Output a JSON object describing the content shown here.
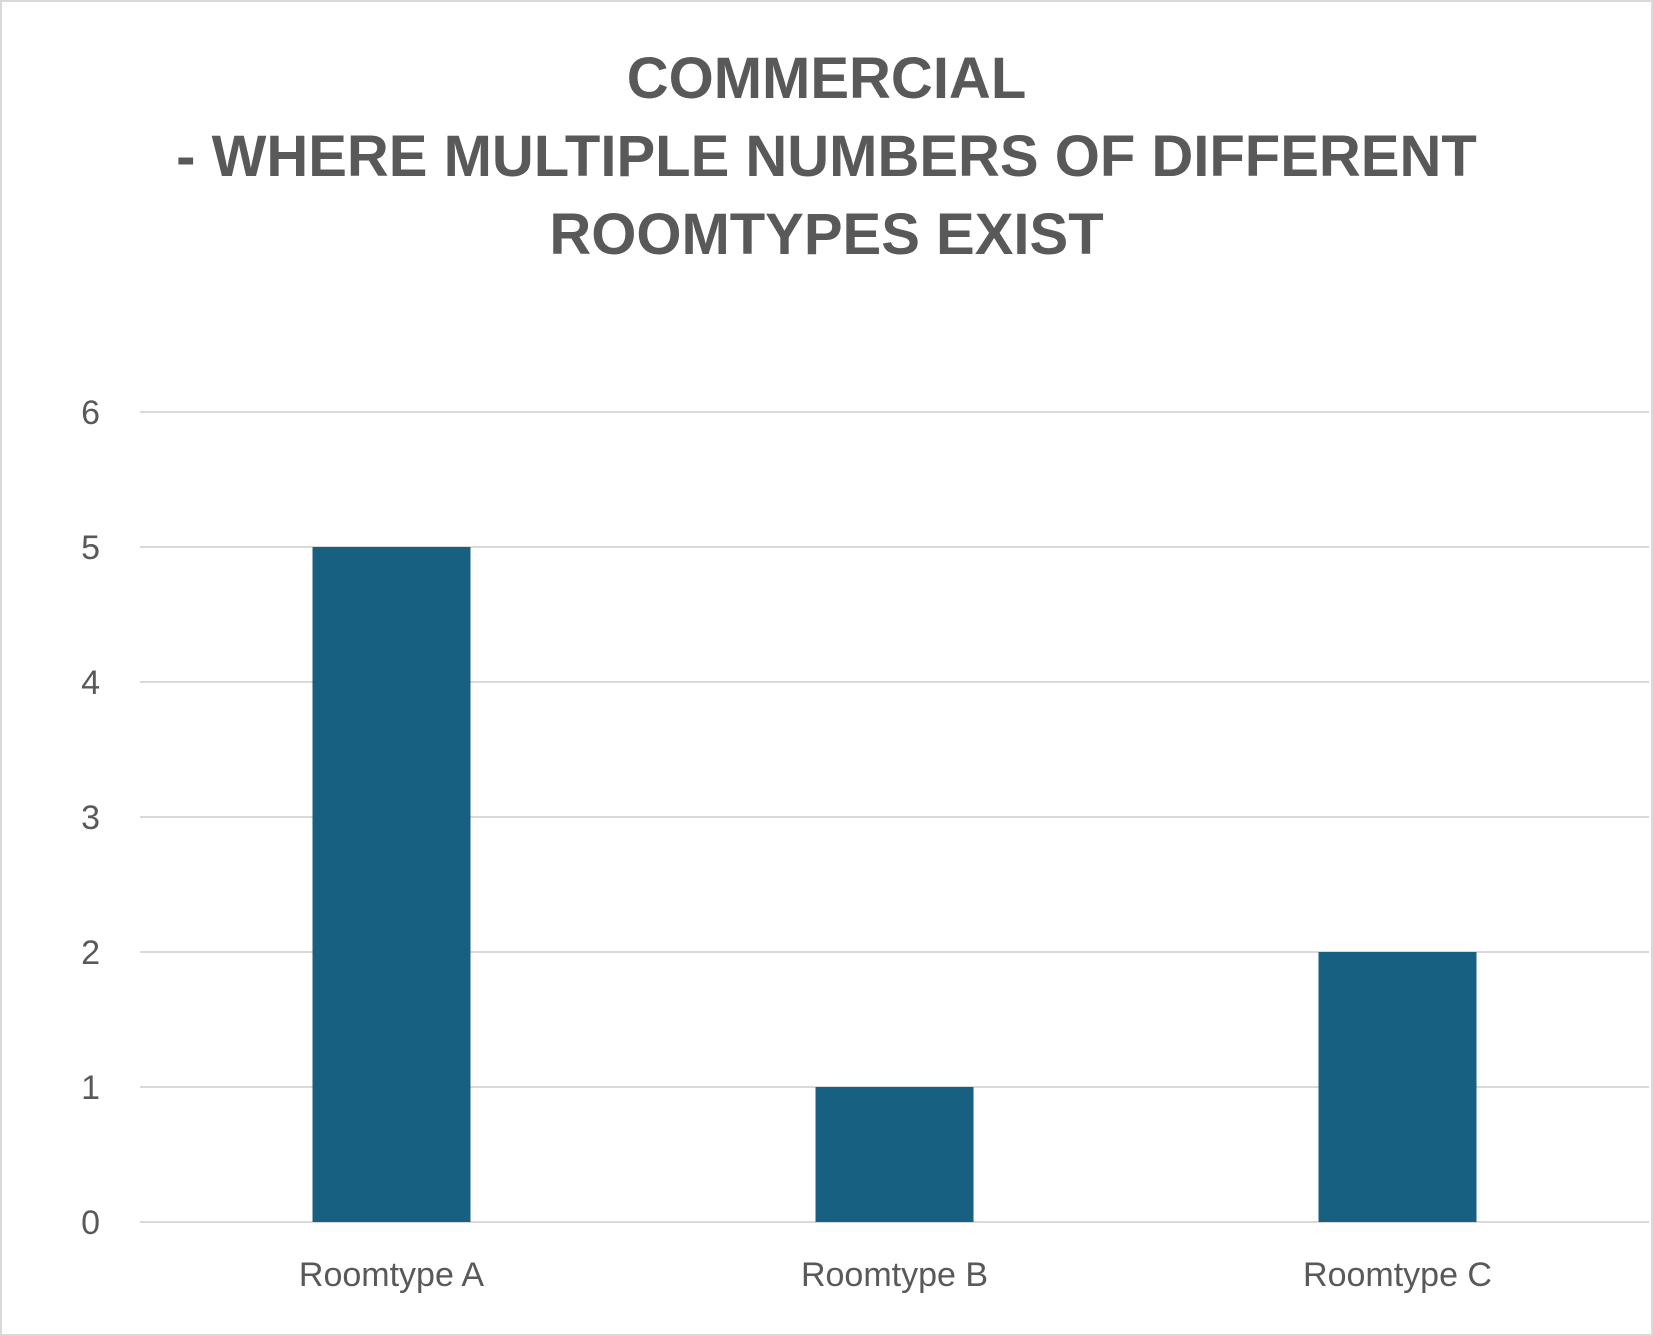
{
  "chart_data": {
    "type": "bar",
    "title_lines": [
      "COMMERCIAL",
      "- WHERE MULTIPLE NUMBERS OF DIFFERENT",
      "ROOMTYPES EXIST"
    ],
    "categories": [
      "Roomtype A",
      "Roomtype B",
      "Roomtype C"
    ],
    "values": [
      5,
      1,
      2
    ],
    "ylim": [
      0,
      6
    ],
    "yticks": [
      "0",
      "1",
      "2",
      "3",
      "4",
      "5",
      "6"
    ],
    "grid": true,
    "bar_color": "#176082",
    "grid_color": "#d9d9d9",
    "text_color": "#595959"
  }
}
